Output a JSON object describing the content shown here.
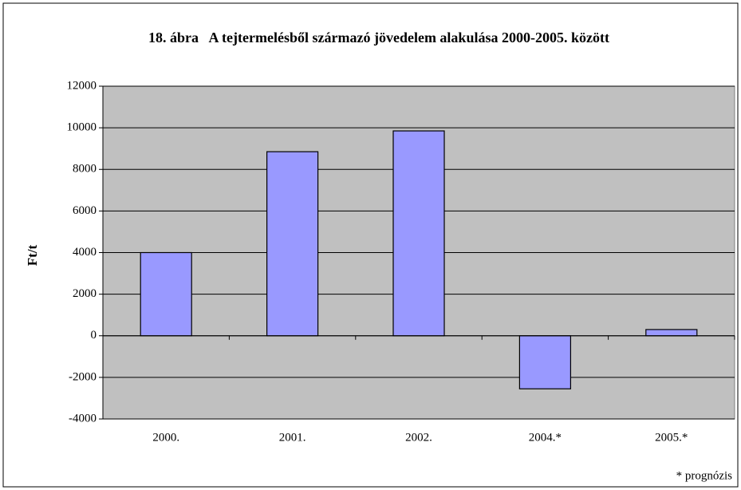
{
  "chart_data": {
    "type": "bar",
    "title": "18. ábra   A tejtermelésből származó jövedelem alakulása 2000-2005. között",
    "y_label": "Ft/t",
    "note": "* prognózis",
    "categories": [
      "2000.",
      "2001.",
      "2002.",
      "2004.*",
      "2005.*"
    ],
    "values": [
      4000,
      8850,
      9850,
      -2550,
      300
    ],
    "color": "#9999ff",
    "ylim": [
      -4000,
      12000
    ],
    "yticks": [
      -4000,
      -2000,
      0,
      2000,
      4000,
      6000,
      8000,
      10000,
      12000
    ],
    "grid": true
  }
}
